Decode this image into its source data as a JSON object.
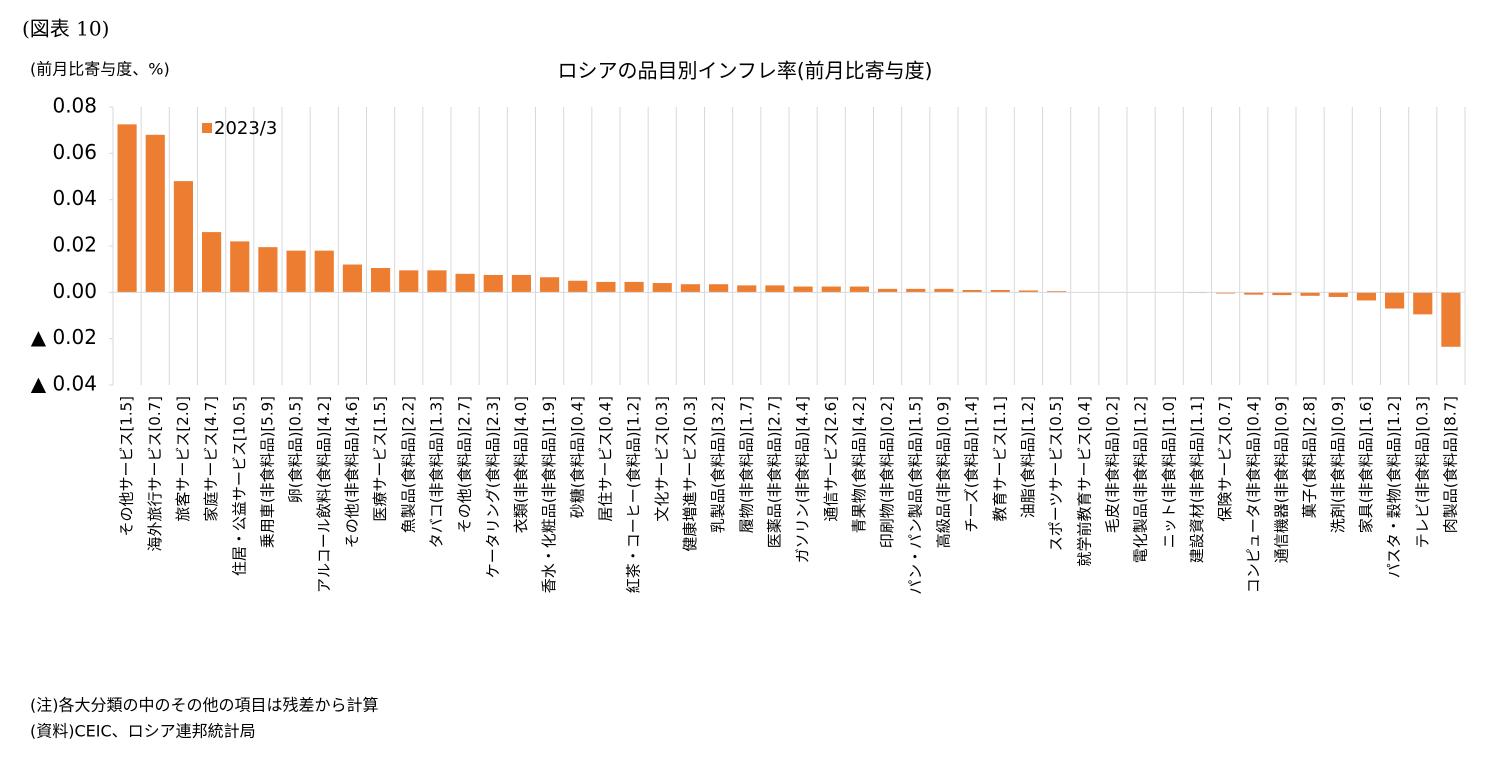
{
  "figure_label": "(図表 10)",
  "notes": [
    "(注)各大分類の中のその他の項目は残差から計算",
    "(資料)CEIC、ロシア連邦統計局"
  ],
  "chart_data": {
    "type": "bar",
    "title": "ロシアの品目別インフレ率(前月比寄与度)",
    "y_label": "(前月比寄与度、%)",
    "categories": [
      "その他サービス[1.5]",
      "海外旅行サービス[0.7]",
      "旅客サービス[2.0]",
      "家庭サービス[4.7]",
      "住居・公益サービス[10.5]",
      "乗用車(非食料品)[5.9]",
      "卵(食料品)[0.5]",
      "アルコール飲料(食料品)[4.2]",
      "その他(非食料品)[4.6]",
      "医療サービス[1.5]",
      "魚製品(食料品)[2.2]",
      "タバコ(非食料品)[1.3]",
      "その他(食料品)[2.7]",
      "ケータリング(食料品)[2.3]",
      "衣類(非食料品)[4.0]",
      "香水・化粧品(非食料品)[1.9]",
      "砂糖(食料品)[0.4]",
      "居住サービス[0.4]",
      "紅茶・コーヒー(食料品)[1.2]",
      "文化サービス[0.3]",
      "健康増進サービス[0.3]",
      "乳製品(食料品)[3.2]",
      "履物(非食料品)[1.7]",
      "医薬品(非食料品)[2.7]",
      "ガソリン(非食料品)[4.4]",
      "通信サービス[2.6]",
      "青果物(食料品)[4.2]",
      "印刷物(非食料品)[0.2]",
      "パン・パン製品(食料品)[1.5]",
      "高級品(非食料品)[0.9]",
      "チーズ(食料品)[1.4]",
      "教育サービス[1.1]",
      "油脂(食料品)[1.2]",
      "スポーツサービス[0.5]",
      "就学前教育サービス[0.4]",
      "毛皮(非食料品)[0.2]",
      "電化製品(非食料品)[1.2]",
      "ニット(非食料品)[1.0]",
      "建設資材(非食料品)[1.1]",
      "保険サービス[0.7]",
      "コンピュータ(非食料品)[0.4]",
      "通信機器(非食料品)[0.9]",
      "菓子(食料品)[2.8]",
      "洗剤(非食料品)[0.9]",
      "家具(非食料品)[1.6]",
      "パスタ・穀物(食料品)[1.2]",
      "テレビ(非食料品)[0.3]",
      "肉製品(食料品)[8.7]"
    ],
    "series": [
      {
        "name": "2023/3",
        "color": "#ed7d31",
        "values": [
          0.0725,
          0.068,
          0.048,
          0.026,
          0.022,
          0.0195,
          0.018,
          0.018,
          0.012,
          0.0105,
          0.0095,
          0.0095,
          0.008,
          0.0075,
          0.0075,
          0.0065,
          0.005,
          0.0045,
          0.0045,
          0.004,
          0.0035,
          0.0035,
          0.003,
          0.003,
          0.0025,
          0.0025,
          0.0025,
          0.0015,
          0.0015,
          0.0015,
          0.001,
          0.001,
          0.0008,
          0.0005,
          0,
          0,
          0,
          0,
          -0.0003,
          -0.0005,
          -0.001,
          -0.0012,
          -0.0015,
          -0.002,
          -0.0035,
          -0.007,
          -0.0095,
          -0.0235
        ]
      }
    ],
    "ylim": [
      -0.04,
      0.08
    ],
    "yticks": [
      {
        "value": -0.04,
        "label": "▲ 0.04"
      },
      {
        "value": -0.02,
        "label": "▲ 0.02"
      },
      {
        "value": 0,
        "label": "0.00"
      },
      0.02,
      0.04,
      0.06,
      0.08
    ]
  }
}
